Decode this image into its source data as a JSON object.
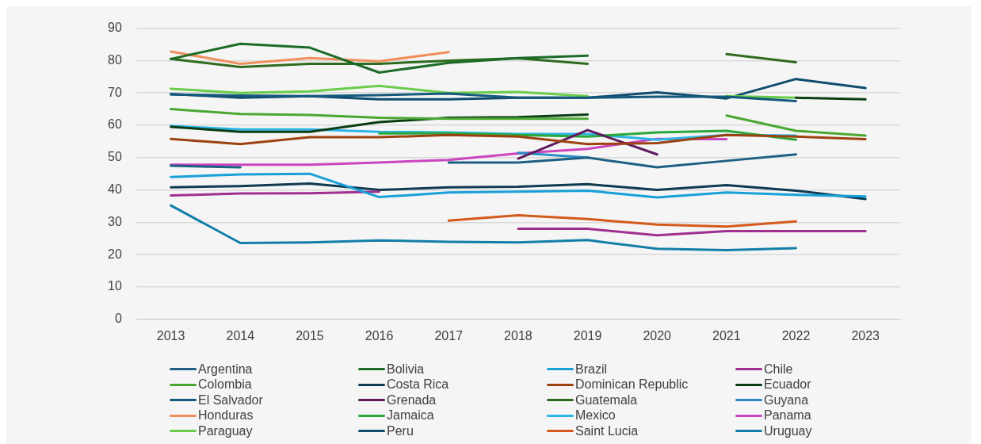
{
  "chart_data": {
    "type": "line",
    "x": [
      2013,
      2014,
      2015,
      2016,
      2017,
      2018,
      2019,
      2020,
      2021,
      2022,
      2023
    ],
    "xlim": [
      2012.5,
      2023.5
    ],
    "xticks": [
      2013,
      2014,
      2015,
      2016,
      2017,
      2018,
      2019,
      2020,
      2021,
      2022,
      2023
    ],
    "ylim": [
      0,
      90
    ],
    "yticks": [
      0,
      10,
      20,
      30,
      40,
      50,
      60,
      70,
      80,
      90
    ],
    "grid": "y",
    "legend": "bottom",
    "marker": "none",
    "line_style": "solid",
    "series": [
      {
        "name": "Argentina",
        "color": "#1d6083",
        "values": [
          47.5,
          47,
          null,
          null,
          48.5,
          48.5,
          50,
          47,
          49,
          51,
          null
        ]
      },
      {
        "name": "Bolivia",
        "color": "#1c6b27",
        "values": [
          80.5,
          85.2,
          84,
          76.3,
          79.3,
          80.8,
          81.5,
          null,
          null,
          null,
          null
        ]
      },
      {
        "name": "Brazil",
        "color": "#18a0d8",
        "values": [
          44,
          44.8,
          45,
          37.8,
          39.2,
          39.5,
          39.8,
          37.7,
          39.2,
          38.5,
          38
        ]
      },
      {
        "name": "Chile",
        "color": "#a0308f",
        "values": [
          38.3,
          38.9,
          39,
          39.5,
          null,
          28,
          28,
          26,
          27.3,
          27.3,
          27.3
        ]
      },
      {
        "name": "Colombia",
        "color": "#4aa832",
        "values": [
          65,
          63.5,
          63.2,
          62.3,
          62,
          62,
          62,
          null,
          63,
          58.3,
          56.8
        ]
      },
      {
        "name": "Costa Rica",
        "color": "#0e3a52",
        "values": [
          40.8,
          41.2,
          42,
          40,
          40.8,
          41,
          41.8,
          40,
          41.5,
          39.8,
          37.2
        ]
      },
      {
        "name": "Dominican Republic",
        "color": "#9c4210",
        "values": [
          55.8,
          54.2,
          56.3,
          56.3,
          57,
          56.5,
          54.2,
          54.5,
          57,
          56.5,
          55.7
        ]
      },
      {
        "name": "Ecuador",
        "color": "#0b3d12",
        "values": [
          59.5,
          58,
          58,
          61,
          62.3,
          62.5,
          63.3,
          null,
          null,
          68.5,
          68
        ]
      },
      {
        "name": "El Salvador",
        "color": "#155a7d",
        "values": [
          69.5,
          69.2,
          69,
          69.3,
          69.8,
          68.5,
          68.5,
          68.8,
          68.8,
          67.5,
          null
        ]
      },
      {
        "name": "Grenada",
        "color": "#5e1a5c",
        "values": [
          null,
          null,
          null,
          null,
          null,
          49.7,
          58.5,
          51,
          null,
          null,
          null
        ]
      },
      {
        "name": "Guatemala",
        "color": "#2e6b1e",
        "values": [
          80.5,
          78,
          79,
          79,
          80,
          80.7,
          79,
          null,
          82,
          79.5,
          null
        ]
      },
      {
        "name": "Guyana",
        "color": "#2a8ec4",
        "values": [
          null,
          null,
          null,
          null,
          null,
          51.5,
          50,
          null,
          null,
          null,
          null
        ]
      },
      {
        "name": "Honduras",
        "color": "#f08f5e",
        "values": [
          82.8,
          79,
          80.8,
          79.8,
          82.6,
          null,
          null,
          null,
          null,
          null,
          null
        ]
      },
      {
        "name": "Jamaica",
        "color": "#2aa83a",
        "values": [
          null,
          null,
          null,
          57.5,
          57.5,
          57,
          56.5,
          57.8,
          58.3,
          55.5,
          null
        ]
      },
      {
        "name": "Mexico",
        "color": "#2bb5e8",
        "values": [
          59.8,
          58.7,
          58.7,
          58,
          57.8,
          57.3,
          57.3,
          55.5,
          57,
          56.8,
          null
        ]
      },
      {
        "name": "Panama",
        "color": "#cc44bf",
        "values": [
          47.8,
          47.8,
          47.8,
          48.5,
          49.3,
          51.3,
          52.7,
          55.8,
          55.7,
          null,
          null
        ]
      },
      {
        "name": "Paraguay",
        "color": "#6acc4a",
        "values": [
          71.3,
          70,
          70.5,
          72.2,
          70,
          70.3,
          69,
          null,
          69,
          68.5,
          null
        ]
      },
      {
        "name": "Peru",
        "color": "#0f4c6e",
        "values": [
          69.7,
          68.5,
          69,
          68,
          68,
          68.5,
          68.5,
          70.2,
          68.3,
          74.3,
          71.5
        ]
      },
      {
        "name": "Saint Lucia",
        "color": "#d4591a",
        "values": [
          null,
          null,
          null,
          null,
          30.5,
          32.2,
          31,
          29.3,
          28.7,
          30.3,
          null
        ]
      },
      {
        "name": "Uruguay",
        "color": "#137ea8",
        "values": [
          35.2,
          23.6,
          23.8,
          24.4,
          24,
          23.8,
          24.5,
          21.8,
          21.4,
          22,
          null
        ]
      }
    ]
  }
}
